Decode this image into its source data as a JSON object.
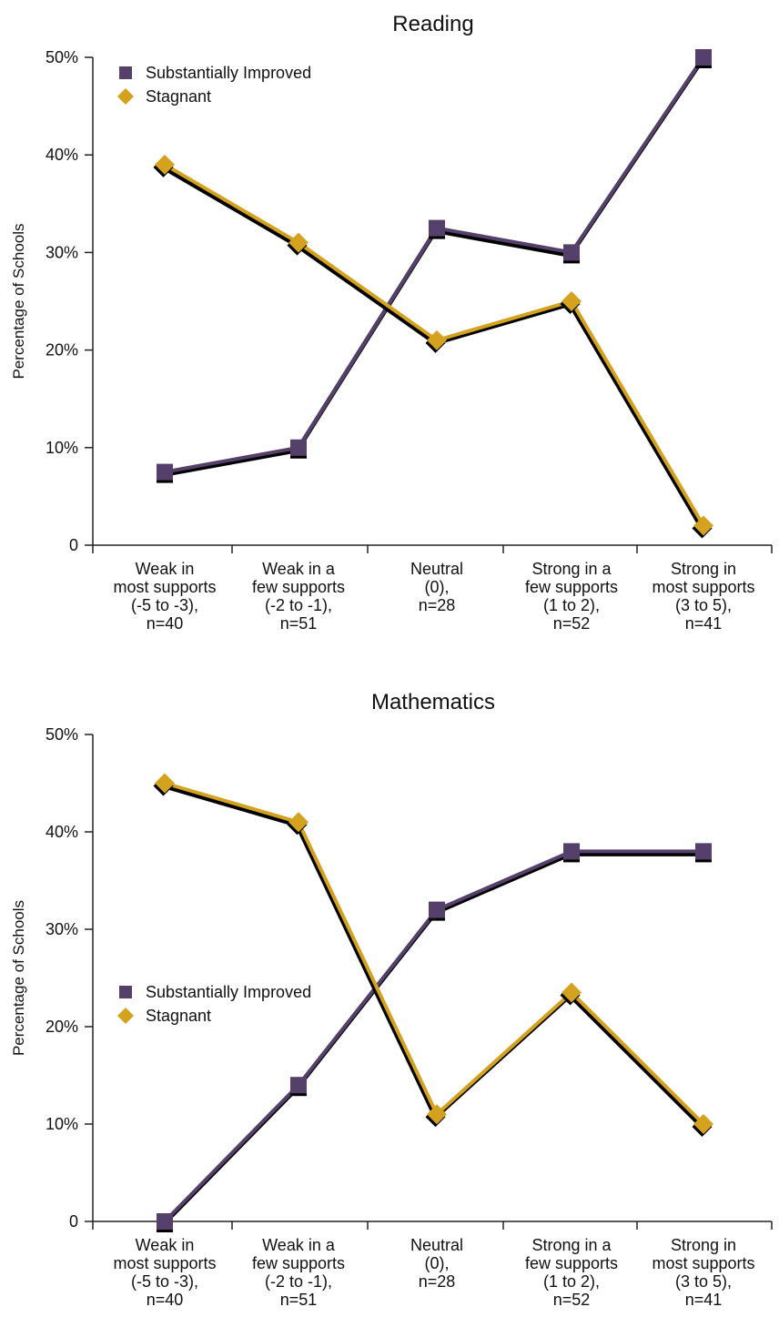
{
  "chart_data": [
    {
      "type": "line",
      "title": "Reading",
      "xlabel": "",
      "ylabel": "Percentage of Schools",
      "ylim": [
        0,
        50
      ],
      "yticks": [
        "0",
        "10%",
        "20%",
        "30%",
        "40%",
        "50%"
      ],
      "categories": [
        [
          "Weak in",
          "most supports",
          "(-5 to -3),",
          "n=40"
        ],
        [
          "Weak in a",
          "few supports",
          "(-2 to -1),",
          "n=51"
        ],
        [
          "Neutral",
          "(0),",
          "n=28"
        ],
        [
          "Strong in a",
          "few supports",
          "(1 to 2),",
          "n=52"
        ],
        [
          "Strong in",
          "most supports",
          "(3 to 5),",
          "n=41"
        ]
      ],
      "series": [
        {
          "name": "Substantially Improved",
          "marker": "square",
          "color": "#54406b",
          "values": [
            7.5,
            10,
            32.5,
            30,
            50
          ]
        },
        {
          "name": "Stagnant",
          "marker": "diamond",
          "color": "#d4a21e",
          "values": [
            39,
            31,
            21,
            25,
            2
          ]
        }
      ],
      "legend": "top-left",
      "grid": false
    },
    {
      "type": "line",
      "title": "Mathematics",
      "xlabel": "",
      "ylabel": "Percentage of Schools",
      "ylim": [
        0,
        50
      ],
      "yticks": [
        "0",
        "10%",
        "20%",
        "30%",
        "40%",
        "50%"
      ],
      "categories": [
        [
          "Weak in",
          "most supports",
          "(-5 to -3),",
          "n=40"
        ],
        [
          "Weak in a",
          "few supports",
          "(-2 to -1),",
          "n=51"
        ],
        [
          "Neutral",
          "(0),",
          "n=28"
        ],
        [
          "Strong in a",
          "few supports",
          "(1 to 2),",
          "n=52"
        ],
        [
          "Strong in",
          "most supports",
          "(3 to 5),",
          "n=41"
        ]
      ],
      "series": [
        {
          "name": "Substantially Improved",
          "marker": "square",
          "color": "#54406b",
          "values": [
            0,
            14,
            32,
            38,
            38
          ]
        },
        {
          "name": "Stagnant",
          "marker": "diamond",
          "color": "#d4a21e",
          "values": [
            45,
            41,
            11,
            23.5,
            10
          ]
        }
      ],
      "legend": "middle-left",
      "grid": false
    }
  ]
}
